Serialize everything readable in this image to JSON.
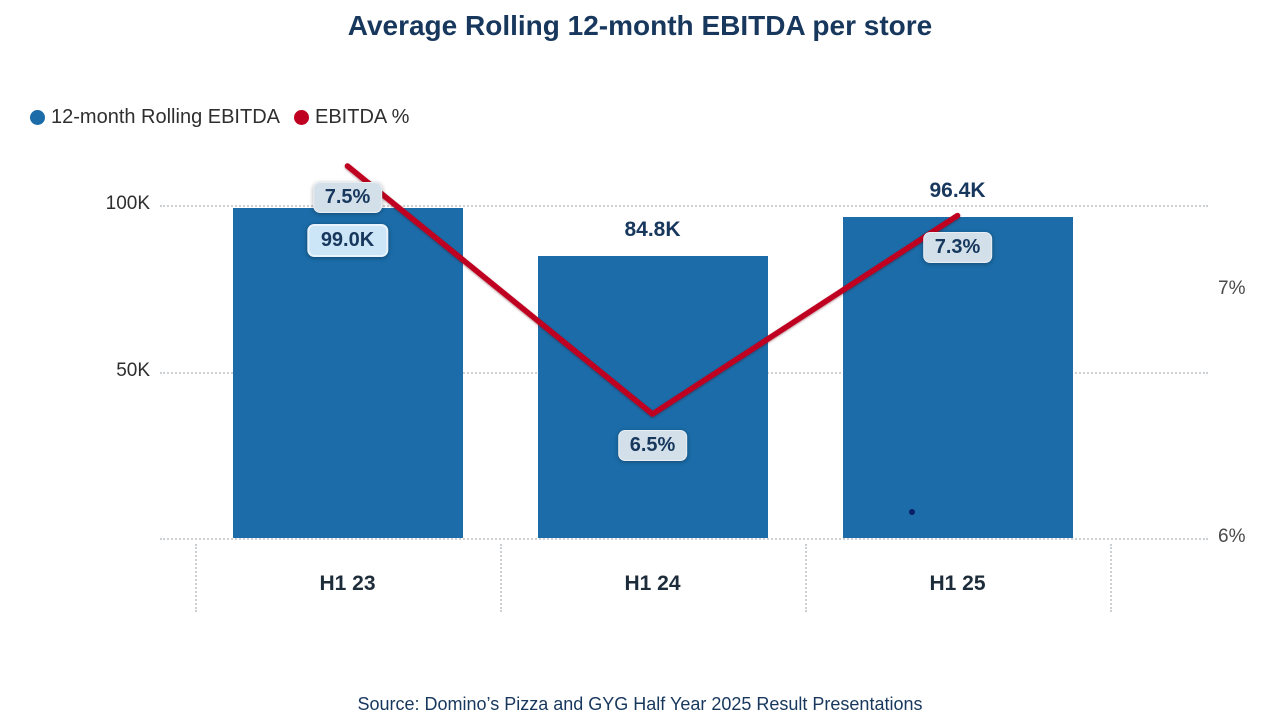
{
  "page": {
    "source": "Source: Domino’s Pizza and GYG Half Year 2025 Result Presentations"
  },
  "chart_data": {
    "type": "combo",
    "title": "Average Rolling 12-month EBITDA per store",
    "categories": [
      "H1 23",
      "H1 24",
      "H1 25"
    ],
    "series": [
      {
        "name": "12-month Rolling EBITDA",
        "type": "bar",
        "axis": "left",
        "color": "#1b6ca8",
        "values": [
          99.0,
          84.8,
          96.4
        ],
        "unit": "K",
        "labels": [
          "99.0K",
          "84.8K",
          "96.4K"
        ],
        "label_styles": [
          "boxed",
          "plain",
          "plain"
        ]
      },
      {
        "name": "EBITDA %",
        "type": "line",
        "axis": "right",
        "color": "#c00020",
        "values": [
          7.5,
          6.5,
          7.3
        ],
        "unit": "%",
        "labels": [
          "7.5%",
          "6.5%",
          "7.3%"
        ]
      }
    ],
    "axes": {
      "left": {
        "min": 0,
        "max": 100,
        "ticks": [
          {
            "label": "100K",
            "value": 100
          },
          {
            "label": "50K",
            "value": 50
          }
        ]
      },
      "right": {
        "ticks": [
          {
            "label": "7%",
            "value": 7
          },
          {
            "label": "6%",
            "value": 6
          }
        ]
      }
    },
    "grid": true,
    "legend_position": "top-left"
  }
}
